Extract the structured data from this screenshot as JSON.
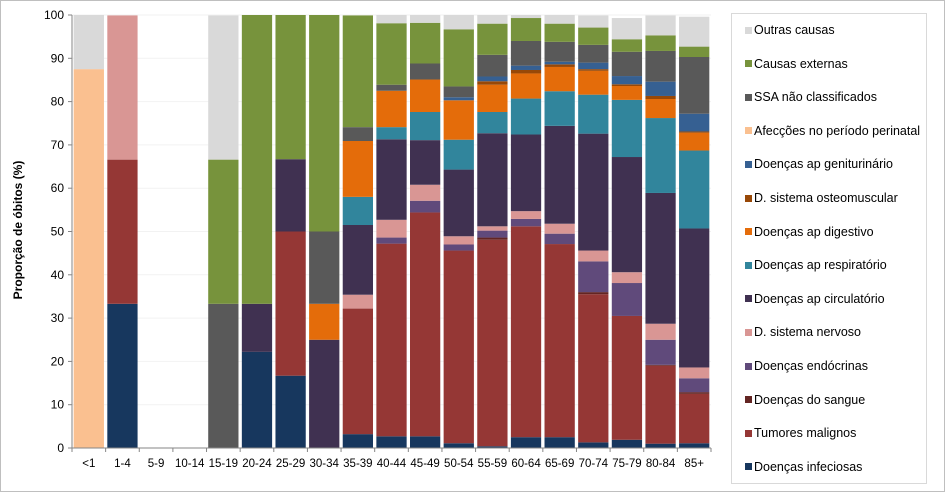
{
  "chart_data": {
    "type": "bar",
    "stacked": true,
    "title": "",
    "xlabel": "",
    "ylabel": "Proporção de óbitos (%)",
    "ylim": [
      0,
      100
    ],
    "yticks": [
      0,
      10,
      20,
      30,
      40,
      50,
      60,
      70,
      80,
      90,
      100
    ],
    "grid": true,
    "legend_position": "right",
    "categories": [
      "<1",
      "1-4",
      "5-9",
      "10-14",
      "15-19",
      "20-24",
      "25-29",
      "30-34",
      "35-39",
      "40-44",
      "45-49",
      "50-54",
      "55-59",
      "60-64",
      "65-69",
      "70-74",
      "75-79",
      "80-84",
      "85+"
    ],
    "series": [
      {
        "name": "Doenças infeciosas",
        "color": "#17375e",
        "values": [
          0,
          33.3,
          0,
          0,
          0,
          22.2,
          16.7,
          0,
          3.2,
          2.7,
          2.7,
          1.1,
          0.4,
          2.5,
          2.5,
          1.3,
          1.9,
          1.0,
          1.1
        ]
      },
      {
        "name": "Tumores malignos",
        "color": "#953735",
        "values": [
          0,
          33.3,
          0,
          0,
          0,
          0,
          33.3,
          0,
          29.0,
          44.5,
          51.7,
          44.5,
          47.7,
          48.7,
          44.6,
          34.2,
          28.6,
          18.0,
          11.4
        ]
      },
      {
        "name": "Doenças do sangue",
        "color": "#632523",
        "values": [
          0,
          0,
          0,
          0,
          0,
          0,
          0,
          0,
          0,
          0,
          0,
          0,
          0.5,
          0,
          0,
          0.5,
          0,
          0.2,
          0.4
        ]
      },
      {
        "name": "Doenças endócrinas",
        "color": "#604a7b",
        "values": [
          0,
          0,
          0,
          0,
          0,
          0,
          0,
          0,
          0,
          1.4,
          2.7,
          1.4,
          1.6,
          1.7,
          2.4,
          7.1,
          7.6,
          5.8,
          3.2
        ]
      },
      {
        "name": "D. sistema nervoso",
        "color": "#d99694",
        "values": [
          0,
          33.3,
          0,
          0,
          0,
          0,
          0,
          0,
          3.2,
          4.1,
          3.7,
          1.9,
          1.0,
          1.8,
          2.3,
          2.5,
          2.5,
          3.7,
          2.5
        ]
      },
      {
        "name": "Doenças ap circulatório",
        "color": "#403151",
        "values": [
          0,
          0,
          0,
          0,
          0,
          11.1,
          16.7,
          25.0,
          16.1,
          18.6,
          10.3,
          15.4,
          21.5,
          17.7,
          22.6,
          27.0,
          26.6,
          30.2,
          32.1
        ]
      },
      {
        "name": "Doenças ap respiratório",
        "color": "#31859c",
        "values": [
          0,
          0,
          0,
          0,
          0,
          0,
          0,
          0,
          6.5,
          2.8,
          6.5,
          6.9,
          4.9,
          8.3,
          8.0,
          9.0,
          13.2,
          17.3,
          18.0
        ]
      },
      {
        "name": "Doenças ap digestivo",
        "color": "#e46c0a",
        "values": [
          0,
          0,
          0,
          0,
          0,
          0,
          0,
          8.3,
          12.9,
          8.4,
          7.5,
          9.1,
          6.3,
          5.8,
          5.6,
          5.5,
          3.2,
          4.4,
          4.1
        ]
      },
      {
        "name": "D. sistema osteomuscular",
        "color": "#984807",
        "values": [
          0,
          0,
          0,
          0,
          0,
          0,
          0,
          0,
          0,
          0,
          0,
          0,
          0.8,
          0.8,
          0.6,
          0.4,
          0.4,
          0.7,
          0.3
        ]
      },
      {
        "name": "Doenças ap geniturinário",
        "color": "#366092",
        "values": [
          0,
          0,
          0,
          0,
          0,
          0,
          0,
          0,
          0,
          0,
          0,
          0.7,
          1.1,
          1.0,
          0.6,
          1.5,
          1.9,
          3.3,
          4.1
        ]
      },
      {
        "name": "Afecções no período perinatal",
        "color": "#fac090",
        "values": [
          87.5,
          0,
          0,
          0,
          0,
          0,
          0,
          0,
          0,
          0,
          0,
          0,
          0,
          0,
          0,
          0,
          0,
          0,
          0
        ]
      },
      {
        "name": "SSA não classificados",
        "color": "#595959",
        "values": [
          0,
          0,
          0,
          0,
          33.3,
          0,
          0,
          16.7,
          3.2,
          1.4,
          3.7,
          2.5,
          5.0,
          5.7,
          4.6,
          4.1,
          5.6,
          7.1,
          13.1
        ]
      },
      {
        "name": "Causas externas",
        "color": "#77933c",
        "values": [
          0,
          0,
          0,
          0,
          33.3,
          66.7,
          33.3,
          50.0,
          25.8,
          14.2,
          9.4,
          13.2,
          7.2,
          5.3,
          4.2,
          4.0,
          2.9,
          3.6,
          2.4
        ]
      },
      {
        "name": "Outras causas",
        "color": "#d9d9d9",
        "values": [
          12.5,
          0,
          0,
          0,
          33.3,
          0,
          0,
          0,
          0,
          1.9,
          1.8,
          3.3,
          2.0,
          0.7,
          2.0,
          2.8,
          4.9,
          4.6,
          6.9
        ]
      }
    ],
    "legend_order": [
      "Outras causas",
      "Causas externas",
      "SSA não classificados",
      "Afecções no período perinatal",
      "Doenças ap geniturinário",
      "D. sistema osteomuscular",
      "Doenças ap digestivo",
      "Doenças ap respiratório",
      "Doenças ap circulatório",
      "D. sistema nervoso",
      "Doenças endócrinas",
      "Doenças do sangue",
      "Tumores malignos",
      "Doenças infeciosas"
    ]
  }
}
